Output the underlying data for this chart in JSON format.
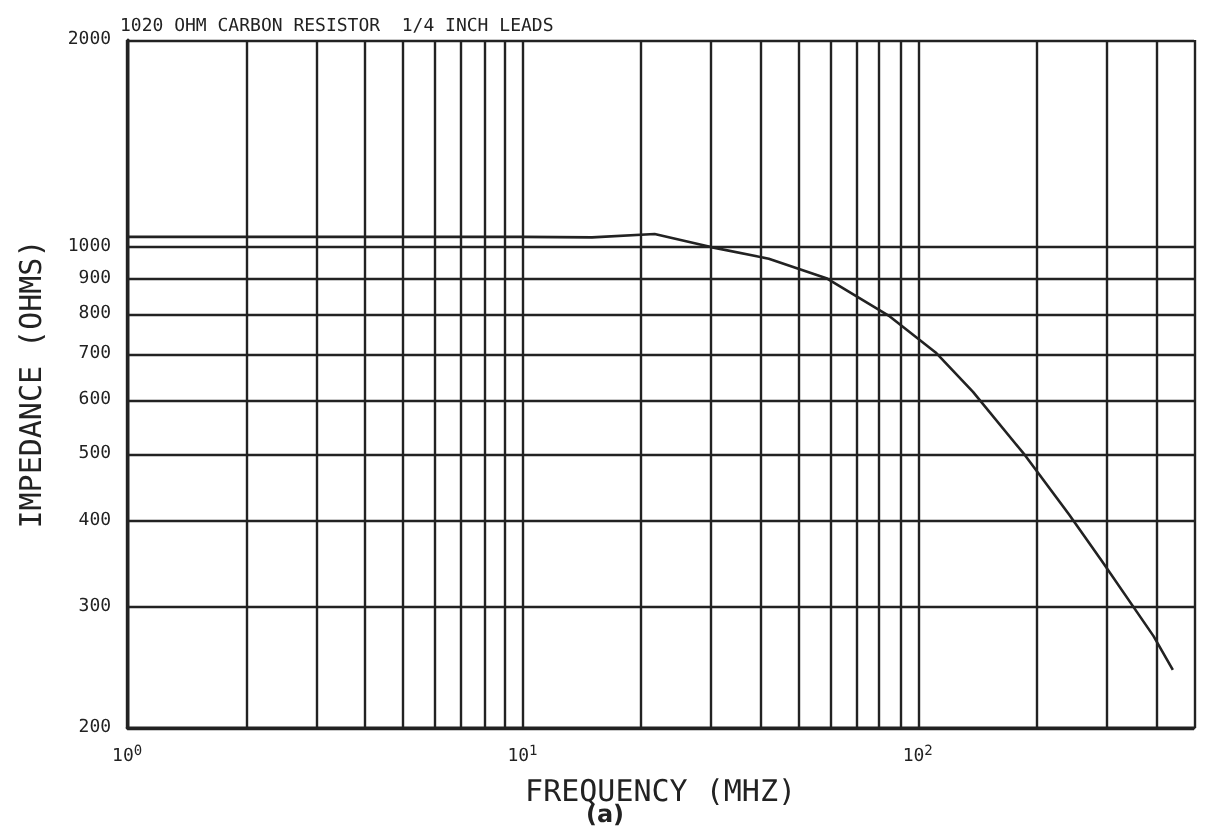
{
  "chart_data": {
    "type": "line",
    "title": "1020 OHM CARBON RESISTOR  1/4 INCH LEADS",
    "xlabel": "FREQUENCY (MHZ)",
    "ylabel": "IMPEDANCE (OHMS)",
    "annotations": [
      "(a)"
    ],
    "log": "xy",
    "grid": true,
    "marker": "none",
    "line_style": "solid",
    "xlim": [
      1,
      500
    ],
    "ylim": [
      200,
      2000
    ],
    "xticks": [
      {
        "value": 1,
        "label": "10$^{0}$"
      },
      {
        "value": 2,
        "label": null
      },
      {
        "value": 3,
        "label": null
      },
      {
        "value": 4,
        "label": null
      },
      {
        "value": 5,
        "label": null
      },
      {
        "value": 6,
        "label": null
      },
      {
        "value": 7,
        "label": null
      },
      {
        "value": 8,
        "label": null
      },
      {
        "value": 9,
        "label": null
      },
      {
        "value": 10,
        "label": "10$^{1}$"
      },
      {
        "value": 20,
        "label": null
      },
      {
        "value": 30,
        "label": null
      },
      {
        "value": 40,
        "label": null
      },
      {
        "value": 50,
        "label": null
      },
      {
        "value": 60,
        "label": null
      },
      {
        "value": 70,
        "label": null
      },
      {
        "value": 80,
        "label": null
      },
      {
        "value": 90,
        "label": null
      },
      {
        "value": 100,
        "label": "10$^{2}$"
      },
      {
        "value": 200,
        "label": null
      },
      {
        "value": 300,
        "label": null
      },
      {
        "value": 400,
        "label": null
      },
      {
        "value": 500,
        "label": null
      }
    ],
    "yticks": [
      200,
      300,
      400,
      500,
      600,
      700,
      800,
      900,
      1000,
      2000
    ],
    "series": [
      {
        "color": "#222222",
        "x": [
          1,
          2,
          5,
          10,
          15,
          21.6,
          30,
          42,
          59,
          85,
          111,
          138,
          187,
          242,
          292,
          395,
          442
        ],
        "values": [
          1035,
          1035,
          1035,
          1035,
          1033,
          1045,
          1000,
          962,
          900,
          793,
          703,
          616,
          498,
          408,
          350,
          272,
          243
        ]
      }
    ]
  }
}
